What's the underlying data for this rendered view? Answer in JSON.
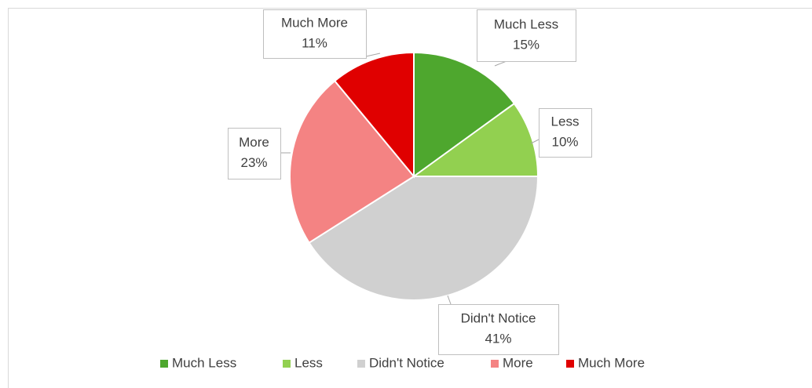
{
  "chart_data": {
    "type": "pie",
    "categories": [
      "Much Less",
      "Less",
      "Didn't Notice",
      "More",
      "Much More"
    ],
    "values": [
      15,
      10,
      41,
      23,
      11
    ],
    "value_labels": [
      "15%",
      "10%",
      "41%",
      "23%",
      "11%"
    ],
    "colors": [
      "#4ea72e",
      "#92d050",
      "#d0d0d0",
      "#f48383",
      "#e00000"
    ],
    "legend": "bottom"
  }
}
